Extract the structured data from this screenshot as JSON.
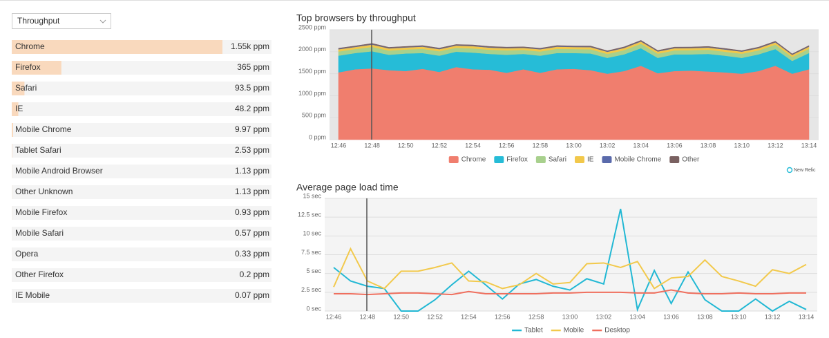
{
  "dropdown": {
    "label": "Throughput"
  },
  "list": {
    "names": [
      "Chrome",
      "Firefox",
      "Safari",
      "IE",
      "Mobile Chrome",
      "Tablet Safari",
      "Mobile Android Browser",
      "Other Unknown",
      "Mobile Firefox",
      "Mobile Safari",
      "Opera",
      "Other Firefox",
      "IE Mobile"
    ],
    "values": [
      1550,
      365,
      93.5,
      48.2,
      9.97,
      2.53,
      1.13,
      1.13,
      0.93,
      0.57,
      0.33,
      0.2,
      0.07
    ],
    "value_labels": [
      "1.55k ppm",
      "365 ppm",
      "93.5 ppm",
      "48.2 ppm",
      "9.97 ppm",
      "2.53 ppm",
      "1.13 ppm",
      "1.13 ppm",
      "0.93 ppm",
      "0.57 ppm",
      "0.33 ppm",
      "0.2 ppm",
      "0.07 ppm"
    ],
    "color": "#f9d9bd"
  },
  "brand": "New Relic",
  "chart_data": [
    {
      "type": "stacked_area",
      "title": "Top browsers by throughput",
      "categories": [
        "12:46",
        null,
        "12:48",
        null,
        "12:50",
        null,
        "12:52",
        null,
        "12:54",
        null,
        "12:56",
        null,
        "12:58",
        null,
        "13:00",
        null,
        "13:02",
        null,
        "13:04",
        null,
        "13:06",
        null,
        "13:08",
        null,
        "13:10",
        null,
        "13:12",
        null,
        "13:14"
      ],
      "ylim": [
        0,
        2500
      ],
      "yticks": [
        {
          "value": 0,
          "label": "0 ppm"
        },
        {
          "value": 500,
          "label": "500 ppm"
        },
        {
          "value": 1000,
          "label": "1000 ppm"
        },
        {
          "value": 1500,
          "label": "1500 ppm"
        },
        {
          "value": 2000,
          "label": "2000 ppm"
        },
        {
          "value": 2500,
          "label": "2500 ppm"
        }
      ],
      "series": [
        {
          "name": "Chrome",
          "color": "#f07e6e",
          "values": [
            1530,
            1600,
            1620,
            1580,
            1560,
            1610,
            1540,
            1650,
            1600,
            1590,
            1520,
            1600,
            1520,
            1600,
            1610,
            1580,
            1500,
            1560,
            1680,
            1510,
            1560,
            1570,
            1550,
            1530,
            1500,
            1560,
            1680,
            1500,
            1600
          ]
        },
        {
          "name": "Firefox",
          "color": "#26bcd7",
          "values": [
            380,
            370,
            390,
            350,
            400,
            360,
            370,
            350,
            380,
            360,
            410,
            350,
            390,
            370,
            360,
            380,
            360,
            380,
            400,
            350,
            380,
            370,
            400,
            380,
            360,
            380,
            380,
            290,
            370
          ]
        },
        {
          "name": "Safari",
          "color": "#a8d08d",
          "values": [
            95,
            90,
            100,
            95,
            90,
            95,
            100,
            90,
            95,
            95,
            100,
            90,
            95,
            95,
            90,
            95,
            90,
            95,
            100,
            95,
            90,
            95,
            95,
            90,
            95,
            90,
            100,
            90,
            95
          ]
        },
        {
          "name": "IE",
          "color": "#f2c84b",
          "values": [
            50,
            48,
            52,
            50,
            47,
            50,
            48,
            50,
            52,
            49,
            50,
            48,
            50,
            50,
            47,
            50,
            48,
            50,
            52,
            49,
            50,
            48,
            50,
            50,
            47,
            50,
            52,
            48,
            50
          ]
        },
        {
          "name": "Mobile Chrome",
          "color": "#5a6aab",
          "values": [
            10,
            10,
            11,
            10,
            9,
            10,
            10,
            10,
            11,
            10,
            10,
            9,
            10,
            10,
            10,
            10,
            9,
            10,
            11,
            10,
            10,
            10,
            10,
            10,
            9,
            10,
            11,
            10,
            10
          ]
        },
        {
          "name": "Other",
          "color": "#7a6161",
          "values": [
            15,
            14,
            16,
            15,
            14,
            15,
            15,
            14,
            16,
            15,
            15,
            14,
            15,
            15,
            14,
            15,
            14,
            15,
            16,
            15,
            15,
            14,
            15,
            15,
            14,
            15,
            16,
            14,
            15
          ]
        }
      ],
      "legend": "bottom"
    },
    {
      "type": "line",
      "title": "Average page load time",
      "categories": [
        "12:46",
        null,
        "12:48",
        null,
        "12:50",
        null,
        "12:52",
        null,
        "12:54",
        null,
        "12:56",
        null,
        "12:58",
        null,
        "13:00",
        null,
        "13:02",
        null,
        "13:04",
        null,
        "13:06",
        null,
        "13:08",
        null,
        "13:10",
        null,
        "13:12",
        null,
        "13:14"
      ],
      "ylim": [
        0,
        15
      ],
      "yticks": [
        {
          "value": 0,
          "label": "0 sec"
        },
        {
          "value": 2.5,
          "label": "2.5 sec"
        },
        {
          "value": 5,
          "label": "5 sec"
        },
        {
          "value": 7.5,
          "label": "7.5 sec"
        },
        {
          "value": 10,
          "label": "10 sec"
        },
        {
          "value": 12.5,
          "label": "12.5 sec"
        },
        {
          "value": 15,
          "label": "15 sec"
        }
      ],
      "series": [
        {
          "name": "Tablet",
          "color": "#22b8d4",
          "values": [
            5.8,
            4,
            3.3,
            3,
            0,
            0,
            1.5,
            3.5,
            5.3,
            3.5,
            1.6,
            3.6,
            4.2,
            3.3,
            2.8,
            4.3,
            3.6,
            13.6,
            0.2,
            5.4,
            1,
            5.2,
            1.5,
            0,
            0,
            1.6,
            0,
            1.3,
            0.2
          ]
        },
        {
          "name": "Mobile",
          "color": "#f2c94c",
          "values": [
            3.2,
            8.3,
            4,
            3,
            5.3,
            5.3,
            5.8,
            6.4,
            4,
            3.9,
            3,
            3.5,
            5,
            3.6,
            3.8,
            6.3,
            6.4,
            5.8,
            6.6,
            3,
            4.4,
            4.6,
            6.8,
            4.6,
            4,
            3.3,
            5.5,
            5,
            6.2
          ]
        },
        {
          "name": "Desktop",
          "color": "#ef6f5e",
          "values": [
            2.3,
            2.3,
            2.2,
            2.3,
            2.4,
            2.4,
            2.3,
            2.2,
            2.6,
            2.3,
            2.3,
            2.3,
            2.3,
            2.4,
            2.4,
            2.5,
            2.5,
            2.5,
            2.4,
            2.4,
            2.8,
            2.4,
            2.3,
            2.3,
            2.4,
            2.3,
            2.3,
            2.4,
            2.4
          ]
        }
      ],
      "legend": "bottom"
    }
  ]
}
